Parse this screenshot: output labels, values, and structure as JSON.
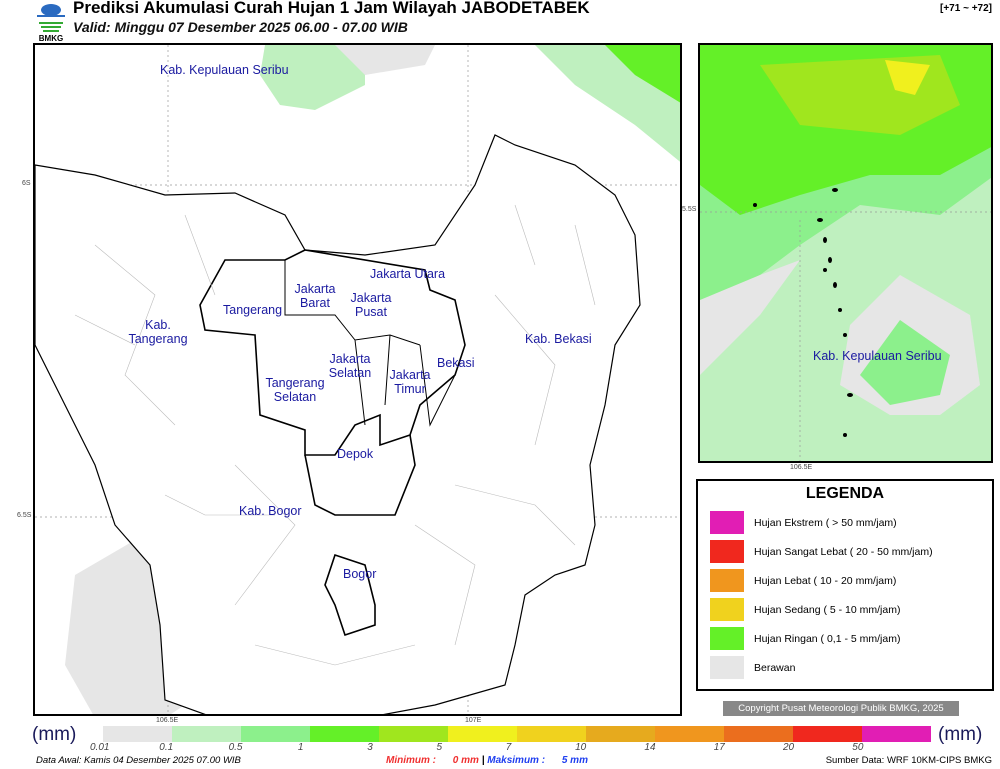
{
  "header": {
    "title": "Prediksi Akumulasi Curah Hujan 1 Jam Wilayah JABODETABEK",
    "valid": "Valid: Minggu 07 Desember 2025 06.00 - 07.00 WIB",
    "range": "[+71 ~ +72]",
    "logo_text": "BMKG"
  },
  "map": {
    "labels": [
      "Kab. Kepulauan Seribu",
      "Jakarta Utara",
      "Jakarta Barat",
      "Jakarta Pusat",
      "Tangerang",
      "Kab. Tangerang",
      "Jakarta Selatan",
      "Jakarta Timur",
      "Bekasi",
      "Kab. Bekasi",
      "Tangerang Selatan",
      "Depok",
      "Kab. Bogor",
      "Bogor"
    ],
    "ticks": {
      "lat1": "6S",
      "lat2": "6.5S",
      "lon1": "106.5E",
      "lon2": "107E"
    }
  },
  "inset": {
    "label": "Kab. Kepulauan Seribu",
    "lat": "5.5S",
    "lon": "106.5E"
  },
  "legend": {
    "title": "LEGENDA",
    "items": [
      {
        "label": "Hujan Ekstrem ( > 50 mm/jam)",
        "color": "#e11eb4"
      },
      {
        "label": "Hujan Sangat Lebat ( 20 - 50 mm/jam)",
        "color": "#f0281e"
      },
      {
        "label": "Hujan Lebat ( 10 - 20 mm/jam)",
        "color": "#f0961e"
      },
      {
        "label": "Hujan Sedang ( 5 - 10 mm/jam)",
        "color": "#f0d21e"
      },
      {
        "label": "Hujan Ringan ( 0,1 - 5 mm/jam)",
        "color": "#64f028"
      },
      {
        "label": "Berawan",
        "color": "#e6e6e6"
      }
    ]
  },
  "copyright": "Copyright Pusat Meteorologi Publik BMKG, 2025",
  "colorbar": {
    "unit": "(mm)",
    "colors": [
      "#e6e6e6",
      "#bff0bf",
      "#8cf08c",
      "#64f028",
      "#a0e61e",
      "#f0f01e",
      "#f0d21e",
      "#e6aa1e",
      "#f0961e",
      "#eb6e1e",
      "#f0281e",
      "#e11eb4"
    ],
    "ticks": [
      "0.01",
      "0.1",
      "0.5",
      "1",
      "3",
      "5",
      "7",
      "10",
      "14",
      "17",
      "20",
      "50"
    ]
  },
  "footer": {
    "data_awal": "Data Awal: Kamis 04 Desember 2025 07.00 WIB",
    "min_label": "Minimum :",
    "min_value": "0 mm",
    "max_label": "Maksimum :",
    "max_value": "5 mm",
    "source": "Sumber Data: WRF 10KM-CIPS BMKG"
  }
}
